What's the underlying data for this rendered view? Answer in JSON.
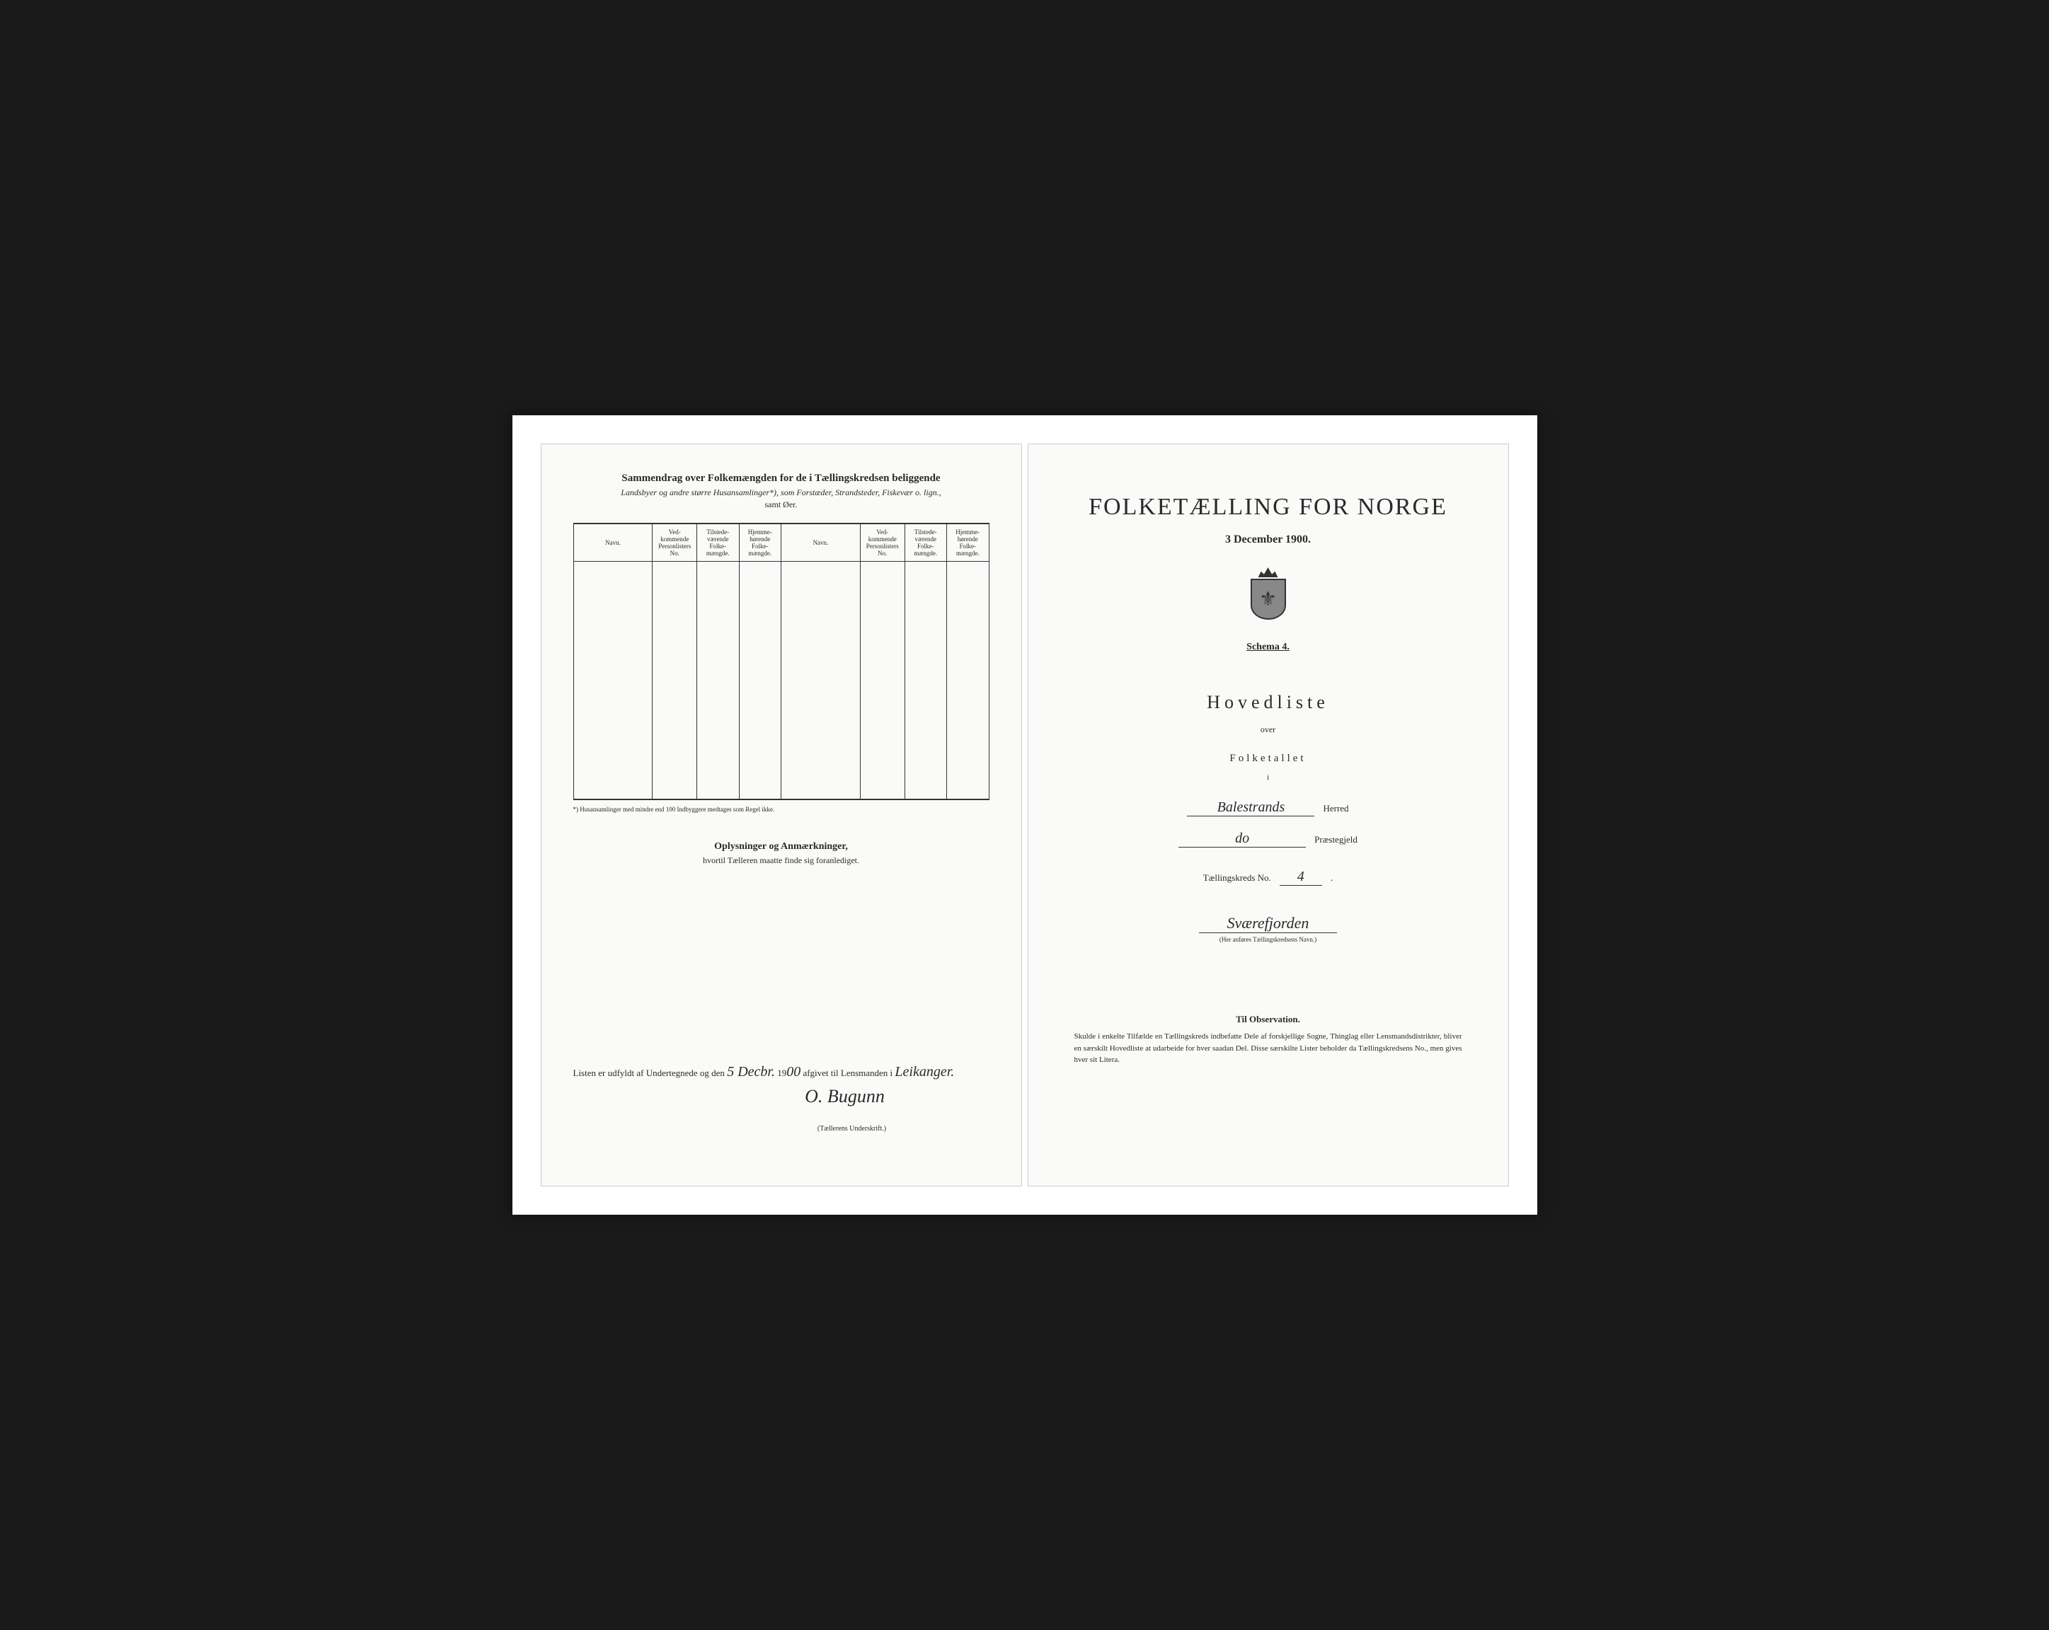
{
  "colors": {
    "frame_bg": "#ffffff",
    "page_bg": "#fafaf8",
    "outer_bg": "#1a1a1a",
    "text": "#2a2a2a",
    "border": "#333333"
  },
  "left_page": {
    "title": "Sammendrag over Folkemængden for de i Tællingskredsen beliggende",
    "subtitle": "Landsbyer og andre større Husansamlinger*), som Forstæder, Strandsteder, Fiskevær o. lign.,",
    "subtitle2": "samt Øer.",
    "table": {
      "headers": [
        "Navn.",
        "Ved-\nkommende\nPersonlisters\nNo.",
        "Tilstede-\nværende\nFolke-\nmængde.",
        "Hjemme-\nhørende\nFolke-\nmængde.",
        "Navn.",
        "Ved-\nkommende\nPersonlisters\nNo.",
        "Tilstede-\nværende\nFolke-\nmængde.",
        "Hjemme-\nhørende\nFolke-\nmængde."
      ],
      "row_count": 12
    },
    "footnote": "*) Husansamlinger med mindre end 100 Indbyggere medtages som Regel ikke.",
    "oplysninger_title": "Oplysninger og Anmærkninger,",
    "oplysninger_sub": "hvortil Tælleren maatte finde sig foranlediget.",
    "signature_prefix": "Listen er udfyldt af Undertegnede og den",
    "signature_date_hw": "5 Decbr.",
    "signature_year_prefix": "19",
    "signature_year_hw": "00",
    "signature_mid": "afgivet til Lensmanden i",
    "signature_place_hw": "Leikanger.",
    "signature_name_hw": "O. Bugunn",
    "signature_sub": "(Tællerens Underskrift.)"
  },
  "right_page": {
    "main_title": "FOLKETÆLLING FOR NORGE",
    "date_line": "3 December 1900.",
    "schema": "Schema 4.",
    "hovedliste": "Hovedliste",
    "over": "over",
    "folketallet": "Folketallet",
    "i": "i",
    "herred_value": "Balestrands",
    "herred_label": "Herred",
    "praeste_value": "do",
    "praeste_label": "Præstegjeld",
    "kreds_prefix": "Tællingskreds No.",
    "kreds_no": "4",
    "kreds_name": "Sværefjorden",
    "kreds_sub": "(Her anføres Tællingskredsens Navn.)",
    "observation_title": "Til Observation.",
    "observation_text": "Skulde i enkelte Tilfælde en Tællingskreds indbefatte Dele af forskjellige Sogne, Thinglag eller Lensmandsdistrikter, bliver en særskilt Hovedliste at udarbeide for hver saadan Del. Disse særskilte Lister beholder da Tællingskredsens No., men gives hver sit Litera."
  }
}
